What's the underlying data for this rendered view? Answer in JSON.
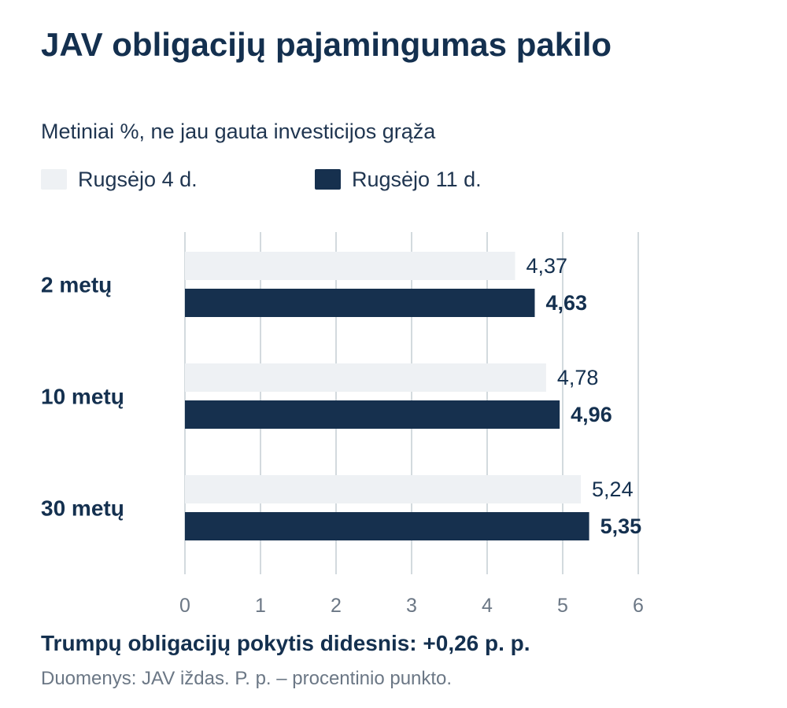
{
  "title": "JAV obligacijų pajamingumas pakilo",
  "subtitle": "Metiniai %, ne jau gauta investicijos grąža",
  "legend": {
    "items": [
      {
        "label": "Rugsėjo 4 d.",
        "color": "#eef1f4"
      },
      {
        "label": "Rugsėjo 11 d.",
        "color": "#16304e"
      }
    ]
  },
  "chart_data": {
    "type": "bar",
    "orientation": "horizontal",
    "categories": [
      "2 metų",
      "10 metų",
      "30 metų"
    ],
    "series": [
      {
        "name": "Rugsėjo 4 d.",
        "values": [
          4.37,
          4.78,
          5.24
        ],
        "value_labels": [
          "4,37",
          "4,78",
          "5,24"
        ],
        "color": "#eef1f4"
      },
      {
        "name": "Rugsėjo 11 d.",
        "values": [
          4.63,
          4.96,
          5.35
        ],
        "value_labels": [
          "4,63",
          "4,96",
          "5,35"
        ],
        "color": "#16304e"
      }
    ],
    "xlim": [
      0,
      6
    ],
    "x_ticks": [
      0,
      1,
      2,
      3,
      4,
      5,
      6
    ],
    "grid": true,
    "legend_position": "top-left"
  },
  "note": "Trumpų obligacijų pokytis didesnis: +0,26 p. p.",
  "source": "Duomenys: JAV iždas. P. p. – procentinio punkto."
}
